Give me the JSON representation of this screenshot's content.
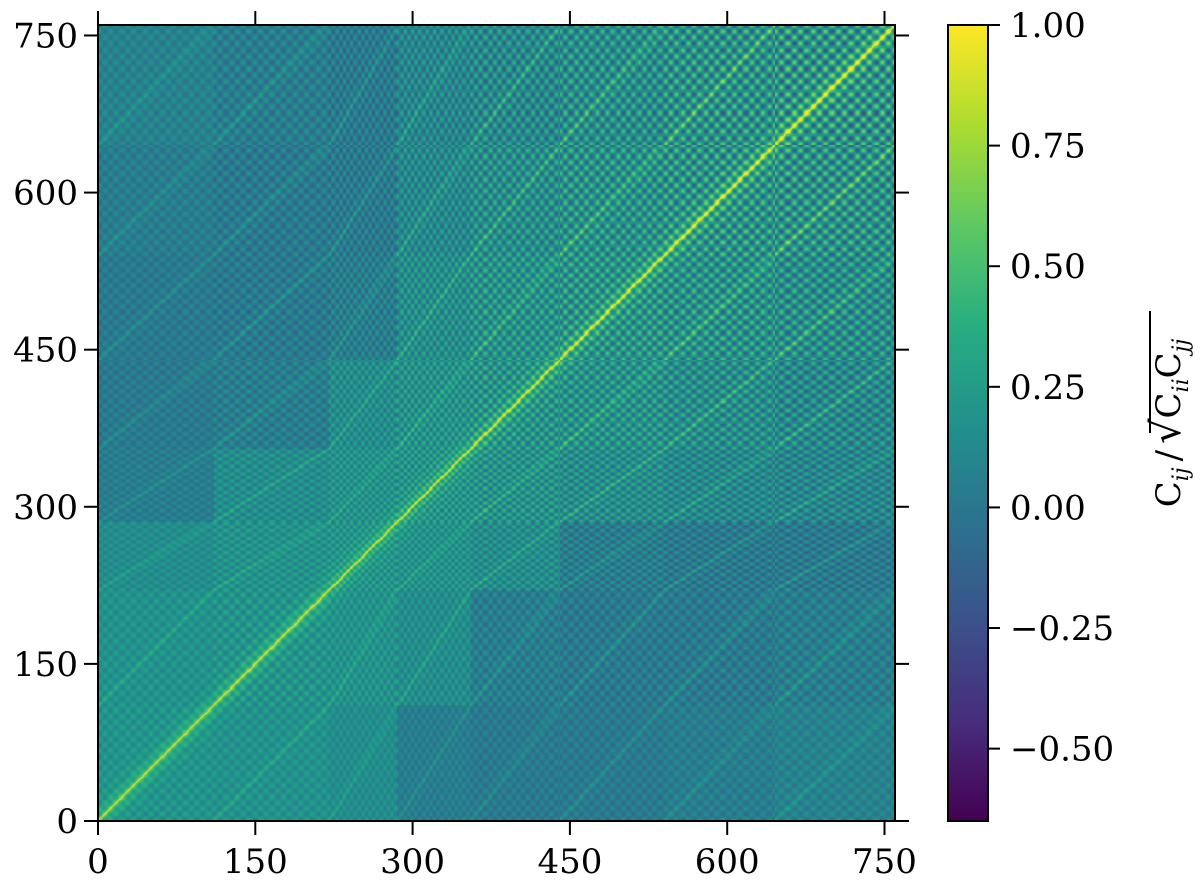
{
  "chart_data": {
    "type": "heatmap",
    "title": "",
    "xlabel": "",
    "ylabel": "",
    "xlim": [
      0,
      760
    ],
    "ylim": [
      0,
      760
    ],
    "x_ticks": [
      0,
      150,
      300,
      450,
      600,
      750
    ],
    "y_ticks": [
      0,
      150,
      300,
      450,
      600,
      750
    ],
    "x_tick_labels": [
      "0",
      "150",
      "300",
      "450",
      "600",
      "750"
    ],
    "y_tick_labels": [
      "0",
      "150",
      "300",
      "450",
      "600",
      "750"
    ],
    "matrix_size": 760,
    "block_boundaries": [
      0,
      110,
      220,
      285,
      355,
      440,
      540,
      645,
      760
    ],
    "description_of_values": "correlation matrix, diagonal = 1.00",
    "colormap": "viridis",
    "colorbar": {
      "label": "C_ij / sqrt(C_ii C_jj)",
      "label_main": "C",
      "label_sub_ij": "ij",
      "label_slash": "/",
      "label_sub_ii": "ii",
      "label_sub_jj": "jj",
      "vmin": -0.65,
      "vmax": 1.0,
      "ticks": [
        -0.5,
        -0.25,
        0.0,
        0.25,
        0.5,
        0.75,
        1.0
      ],
      "tick_labels": [
        "−0.50",
        "−0.25",
        "0.00",
        "0.25",
        "0.50",
        "0.75",
        "1.00"
      ]
    },
    "grid": false,
    "legend": "none"
  }
}
